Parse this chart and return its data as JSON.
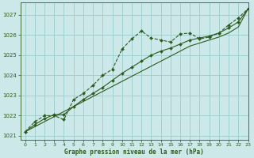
{
  "title": "Graphe pression niveau de la mer (hPa)",
  "background_color": "#cce8e8",
  "grid_color": "#99cccc",
  "line_color": "#2d5a1e",
  "xlim": [
    -0.5,
    23
  ],
  "ylim": [
    1020.8,
    1027.6
  ],
  "yticks": [
    1021,
    1022,
    1023,
    1024,
    1025,
    1026,
    1027
  ],
  "xticks": [
    0,
    1,
    2,
    3,
    4,
    5,
    6,
    7,
    8,
    9,
    10,
    11,
    12,
    13,
    14,
    15,
    16,
    17,
    18,
    19,
    20,
    21,
    22,
    23
  ],
  "series_wavy": [
    1021.2,
    1021.7,
    1022.0,
    1022.0,
    1021.8,
    1022.8,
    1023.1,
    1023.5,
    1024.0,
    1024.3,
    1025.3,
    1025.8,
    1026.2,
    1025.85,
    1025.75,
    1025.65,
    1026.05,
    1026.1,
    1025.8,
    1025.9,
    1026.1,
    1026.5,
    1026.85,
    1027.3
  ],
  "series_linear": [
    1021.2,
    1021.45,
    1021.7,
    1021.95,
    1022.2,
    1022.45,
    1022.7,
    1022.95,
    1023.2,
    1023.45,
    1023.7,
    1023.95,
    1024.2,
    1024.45,
    1024.7,
    1024.95,
    1025.2,
    1025.45,
    1025.6,
    1025.75,
    1025.9,
    1026.1,
    1026.4,
    1027.3
  ],
  "series_mid": [
    1021.2,
    1021.55,
    1021.85,
    1022.05,
    1022.05,
    1022.45,
    1022.8,
    1023.1,
    1023.4,
    1023.75,
    1024.1,
    1024.4,
    1024.7,
    1025.0,
    1025.2,
    1025.35,
    1025.55,
    1025.75,
    1025.85,
    1025.95,
    1026.1,
    1026.35,
    1026.65,
    1027.3
  ],
  "xlabel_fontsize": 5.5,
  "ylabel_fontsize": 5.5,
  "tick_fontsize": 5.0,
  "lw": 0.8,
  "marker_size": 2.0
}
